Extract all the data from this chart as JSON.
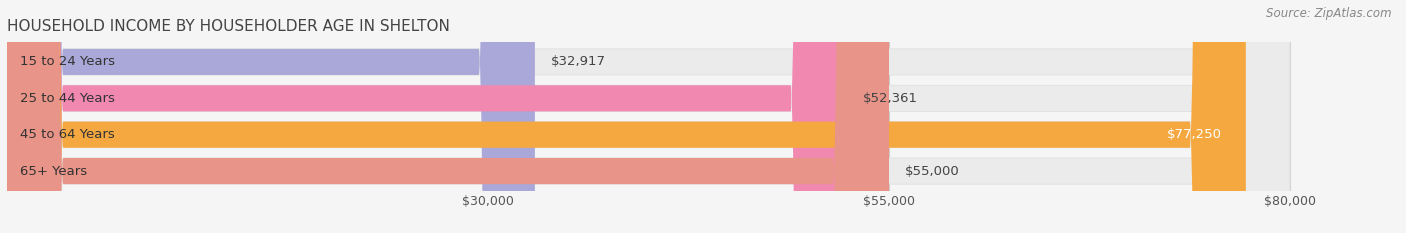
{
  "title": "HOUSEHOLD INCOME BY HOUSEHOLDER AGE IN SHELTON",
  "source": "Source: ZipAtlas.com",
  "categories": [
    "15 to 24 Years",
    "25 to 44 Years",
    "45 to 64 Years",
    "65+ Years"
  ],
  "values": [
    32917,
    52361,
    77250,
    55000
  ],
  "bar_colors": [
    "#aaa8d8",
    "#f088b0",
    "#f5a840",
    "#e89488"
  ],
  "bar_bg_color": "#ebebeb",
  "label_texts": [
    "$32,917",
    "$52,361",
    "$77,250",
    "$55,000"
  ],
  "xlim_data": 80000,
  "xticks": [
    30000,
    55000,
    80000
  ],
  "xtick_labels": [
    "$30,000",
    "$55,000",
    "$80,000"
  ],
  "background_color": "#f5f5f5",
  "title_fontsize": 11,
  "cat_fontsize": 9.5,
  "val_fontsize": 9.5,
  "tick_fontsize": 9,
  "source_fontsize": 8.5,
  "bar_height": 0.72,
  "bar_gap": 0.28
}
